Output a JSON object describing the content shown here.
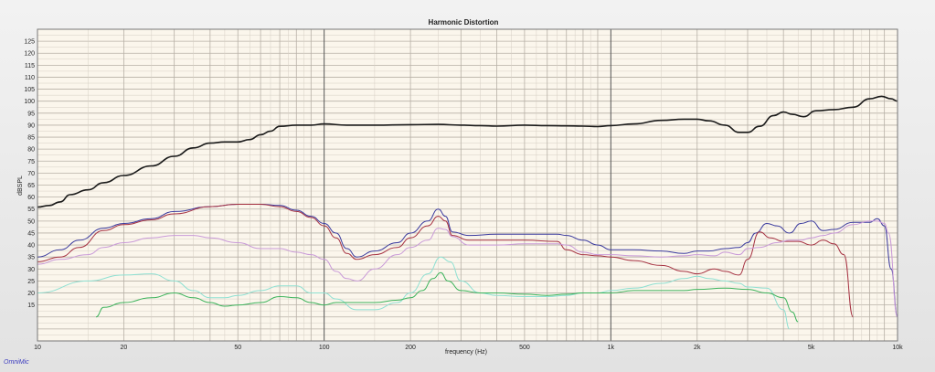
{
  "watermark": "OmniMic",
  "colors": {
    "background": "#fbf6ec",
    "grid_major": "#555555",
    "grid_minor": "#b7b0a6",
    "grid_fine": "#d6cfc4",
    "fundamental": "#1a1a1a",
    "thd": "#3a3a9e",
    "h2": "#a63242",
    "h3": "#c99ad8",
    "h4": "#8ee0d2",
    "h5": "#3cb35b"
  },
  "chart_data": {
    "type": "line",
    "title": "Harmonic Distortion",
    "xlabel": "frequency (Hz)",
    "ylabel": "dBSPL",
    "x_scale": "log",
    "xlim": [
      10,
      10000
    ],
    "ylim": [
      0,
      130
    ],
    "grid": true,
    "x_ticks": [
      {
        "value": 10,
        "label": "10"
      },
      {
        "value": 20,
        "label": "20"
      },
      {
        "value": 50,
        "label": "50"
      },
      {
        "value": 100,
        "label": "100"
      },
      {
        "value": 200,
        "label": "200"
      },
      {
        "value": 500,
        "label": "500"
      },
      {
        "value": 1000,
        "label": "1k"
      },
      {
        "value": 2000,
        "label": "2k"
      },
      {
        "value": 5000,
        "label": "5k"
      },
      {
        "value": 10000,
        "label": "10k"
      }
    ],
    "y_ticks": [
      15,
      20,
      25,
      30,
      35,
      40,
      45,
      50,
      55,
      60,
      65,
      70,
      75,
      80,
      85,
      90,
      95,
      100,
      105,
      110,
      115,
      120,
      125
    ],
    "series": [
      {
        "key": "fundamental",
        "width": 1.6,
        "points": [
          [
            10,
            55.8
          ],
          [
            11,
            56.5
          ],
          [
            12,
            58
          ],
          [
            13,
            61
          ],
          [
            15,
            63
          ],
          [
            17,
            66
          ],
          [
            20,
            69
          ],
          [
            25,
            73
          ],
          [
            30,
            77
          ],
          [
            35,
            80.5
          ],
          [
            40,
            82.5
          ],
          [
            45,
            83
          ],
          [
            50,
            83
          ],
          [
            55,
            84
          ],
          [
            60,
            86
          ],
          [
            65,
            87.5
          ],
          [
            70,
            89.5
          ],
          [
            80,
            90
          ],
          [
            90,
            90
          ],
          [
            100,
            90.5
          ],
          [
            120,
            90
          ],
          [
            150,
            90
          ],
          [
            200,
            90.2
          ],
          [
            250,
            90.3
          ],
          [
            300,
            90
          ],
          [
            350,
            89.8
          ],
          [
            400,
            89.6
          ],
          [
            500,
            90
          ],
          [
            600,
            89.8
          ],
          [
            700,
            89.7
          ],
          [
            800,
            89.6
          ],
          [
            900,
            89.4
          ],
          [
            1000,
            89.8
          ],
          [
            1200,
            90.5
          ],
          [
            1500,
            92
          ],
          [
            1800,
            92.5
          ],
          [
            2000,
            92.5
          ],
          [
            2200,
            91.8
          ],
          [
            2500,
            90
          ],
          [
            2800,
            87
          ],
          [
            3000,
            87
          ],
          [
            3300,
            89.5
          ],
          [
            3700,
            94
          ],
          [
            4000,
            95.5
          ],
          [
            4300,
            94.5
          ],
          [
            4700,
            93.5
          ],
          [
            5200,
            96
          ],
          [
            6000,
            96.5
          ],
          [
            7000,
            97.5
          ],
          [
            8000,
            101
          ],
          [
            8800,
            102
          ],
          [
            9500,
            101
          ],
          [
            10000,
            100
          ]
        ]
      },
      {
        "key": "thd",
        "width": 1,
        "points": [
          [
            10,
            35
          ],
          [
            12,
            38
          ],
          [
            14,
            42
          ],
          [
            17,
            47
          ],
          [
            20,
            49
          ],
          [
            25,
            51
          ],
          [
            30,
            54
          ],
          [
            40,
            56
          ],
          [
            50,
            57
          ],
          [
            60,
            57
          ],
          [
            70,
            56.5
          ],
          [
            80,
            54.5
          ],
          [
            90,
            52
          ],
          [
            100,
            49
          ],
          [
            110,
            45
          ],
          [
            120,
            38.5
          ],
          [
            130,
            35
          ],
          [
            150,
            37.5
          ],
          [
            180,
            41
          ],
          [
            200,
            45
          ],
          [
            230,
            50
          ],
          [
            250,
            55
          ],
          [
            265,
            52
          ],
          [
            280,
            45.5
          ],
          [
            320,
            44
          ],
          [
            400,
            44.5
          ],
          [
            500,
            44.5
          ],
          [
            650,
            44.5
          ],
          [
            700,
            44
          ],
          [
            800,
            42
          ],
          [
            900,
            40
          ],
          [
            1000,
            38
          ],
          [
            1200,
            38
          ],
          [
            1500,
            37.5
          ],
          [
            1800,
            36.5
          ],
          [
            2000,
            37.5
          ],
          [
            2200,
            37.5
          ],
          [
            2500,
            38.5
          ],
          [
            2800,
            39
          ],
          [
            3000,
            41
          ],
          [
            3200,
            45
          ],
          [
            3500,
            49
          ],
          [
            3800,
            48
          ],
          [
            4200,
            45
          ],
          [
            4600,
            49
          ],
          [
            5000,
            50
          ],
          [
            5500,
            46
          ],
          [
            6000,
            46.5
          ],
          [
            7000,
            49.5
          ],
          [
            8000,
            49.5
          ],
          [
            8500,
            51
          ],
          [
            9000,
            48
          ],
          [
            9500,
            30
          ],
          [
            10000,
            10
          ]
        ]
      },
      {
        "key": "h2",
        "width": 1,
        "points": [
          [
            10,
            33
          ],
          [
            12,
            35
          ],
          [
            14,
            39
          ],
          [
            17,
            46
          ],
          [
            20,
            48.5
          ],
          [
            25,
            50.5
          ],
          [
            30,
            53
          ],
          [
            40,
            56
          ],
          [
            50,
            57
          ],
          [
            60,
            57
          ],
          [
            70,
            56
          ],
          [
            80,
            54
          ],
          [
            90,
            51.5
          ],
          [
            100,
            48
          ],
          [
            110,
            43
          ],
          [
            120,
            36.5
          ],
          [
            130,
            34
          ],
          [
            150,
            36
          ],
          [
            180,
            39
          ],
          [
            200,
            43
          ],
          [
            230,
            48
          ],
          [
            250,
            52
          ],
          [
            265,
            50
          ],
          [
            280,
            44
          ],
          [
            320,
            42
          ],
          [
            400,
            42
          ],
          [
            500,
            42
          ],
          [
            650,
            41.5
          ],
          [
            700,
            38
          ],
          [
            800,
            36
          ],
          [
            900,
            35.5
          ],
          [
            1000,
            35
          ],
          [
            1200,
            33.5
          ],
          [
            1500,
            31.5
          ],
          [
            1800,
            29
          ],
          [
            2000,
            28
          ],
          [
            2300,
            30
          ],
          [
            2500,
            29
          ],
          [
            2800,
            27.5
          ],
          [
            3000,
            34
          ],
          [
            3300,
            45.5
          ],
          [
            3600,
            43
          ],
          [
            4000,
            41.5
          ],
          [
            4500,
            41.5
          ],
          [
            5000,
            40
          ],
          [
            5500,
            42
          ],
          [
            6000,
            40.5
          ],
          [
            6500,
            36
          ],
          [
            7000,
            10
          ]
        ]
      },
      {
        "key": "h3",
        "width": 1,
        "points": [
          [
            10,
            32
          ],
          [
            12,
            34
          ],
          [
            15,
            36
          ],
          [
            17,
            39
          ],
          [
            20,
            41
          ],
          [
            25,
            43
          ],
          [
            30,
            44
          ],
          [
            35,
            44
          ],
          [
            40,
            43
          ],
          [
            50,
            41
          ],
          [
            60,
            38.5
          ],
          [
            70,
            38.5
          ],
          [
            80,
            37
          ],
          [
            90,
            36
          ],
          [
            100,
            34
          ],
          [
            110,
            29
          ],
          [
            120,
            26
          ],
          [
            130,
            25
          ],
          [
            150,
            30
          ],
          [
            180,
            36
          ],
          [
            200,
            39
          ],
          [
            230,
            42
          ],
          [
            250,
            47
          ],
          [
            265,
            46.5
          ],
          [
            280,
            43.5
          ],
          [
            320,
            40
          ],
          [
            400,
            40
          ],
          [
            500,
            40.5
          ],
          [
            650,
            40.5
          ],
          [
            700,
            40
          ],
          [
            800,
            37
          ],
          [
            900,
            36
          ],
          [
            1000,
            36
          ],
          [
            1200,
            35.5
          ],
          [
            1500,
            35
          ],
          [
            1800,
            35.5
          ],
          [
            2000,
            36
          ],
          [
            2300,
            35.5
          ],
          [
            2500,
            37
          ],
          [
            2800,
            36
          ],
          [
            3000,
            38.5
          ],
          [
            3300,
            39
          ],
          [
            3800,
            41
          ],
          [
            4200,
            42
          ],
          [
            4600,
            42
          ],
          [
            5000,
            43
          ],
          [
            5500,
            44
          ],
          [
            6000,
            45
          ],
          [
            7000,
            48.5
          ],
          [
            8000,
            50
          ],
          [
            8500,
            50
          ],
          [
            9000,
            49
          ],
          [
            9300,
            45
          ],
          [
            10000,
            10
          ]
        ]
      },
      {
        "key": "h4",
        "width": 1,
        "points": [
          [
            10,
            20
          ],
          [
            15,
            25
          ],
          [
            20,
            27.5
          ],
          [
            25,
            28
          ],
          [
            30,
            25
          ],
          [
            35,
            21
          ],
          [
            40,
            18
          ],
          [
            45,
            18
          ],
          [
            50,
            19
          ],
          [
            60,
            21
          ],
          [
            70,
            23
          ],
          [
            80,
            23
          ],
          [
            90,
            20
          ],
          [
            100,
            20
          ],
          [
            110,
            17.5
          ],
          [
            130,
            13
          ],
          [
            150,
            13
          ],
          [
            180,
            16
          ],
          [
            200,
            20
          ],
          [
            230,
            28
          ],
          [
            255,
            35
          ],
          [
            275,
            33
          ],
          [
            300,
            25
          ],
          [
            350,
            20
          ],
          [
            400,
            19
          ],
          [
            500,
            18.5
          ],
          [
            600,
            18.5
          ],
          [
            700,
            19
          ],
          [
            800,
            20
          ],
          [
            900,
            20
          ],
          [
            1000,
            21
          ],
          [
            1200,
            22
          ],
          [
            1500,
            24
          ],
          [
            1800,
            26
          ],
          [
            2000,
            27
          ],
          [
            2200,
            26
          ],
          [
            2500,
            25
          ],
          [
            2800,
            24
          ],
          [
            3000,
            22.5
          ],
          [
            3500,
            22
          ],
          [
            4000,
            13
          ],
          [
            4200,
            5
          ]
        ]
      },
      {
        "key": "h5",
        "width": 1,
        "points": [
          [
            16,
            10
          ],
          [
            17,
            14
          ],
          [
            20,
            16
          ],
          [
            25,
            18
          ],
          [
            30,
            20
          ],
          [
            35,
            18
          ],
          [
            40,
            16
          ],
          [
            45,
            14.5
          ],
          [
            50,
            15
          ],
          [
            60,
            16
          ],
          [
            70,
            18.5
          ],
          [
            80,
            18
          ],
          [
            90,
            16
          ],
          [
            100,
            15
          ],
          [
            110,
            16
          ],
          [
            130,
            16
          ],
          [
            150,
            16
          ],
          [
            180,
            17
          ],
          [
            200,
            18
          ],
          [
            220,
            21
          ],
          [
            240,
            26
          ],
          [
            255,
            28.5
          ],
          [
            270,
            25
          ],
          [
            300,
            21
          ],
          [
            350,
            20
          ],
          [
            400,
            20
          ],
          [
            500,
            19.5
          ],
          [
            600,
            19
          ],
          [
            700,
            19.5
          ],
          [
            800,
            20
          ],
          [
            900,
            20
          ],
          [
            1000,
            20
          ],
          [
            1200,
            21
          ],
          [
            1500,
            21
          ],
          [
            1800,
            21
          ],
          [
            2000,
            21.5
          ],
          [
            2500,
            22
          ],
          [
            3000,
            21.5
          ],
          [
            3500,
            20
          ],
          [
            4000,
            18
          ],
          [
            4300,
            12
          ],
          [
            4500,
            8
          ]
        ]
      }
    ]
  }
}
